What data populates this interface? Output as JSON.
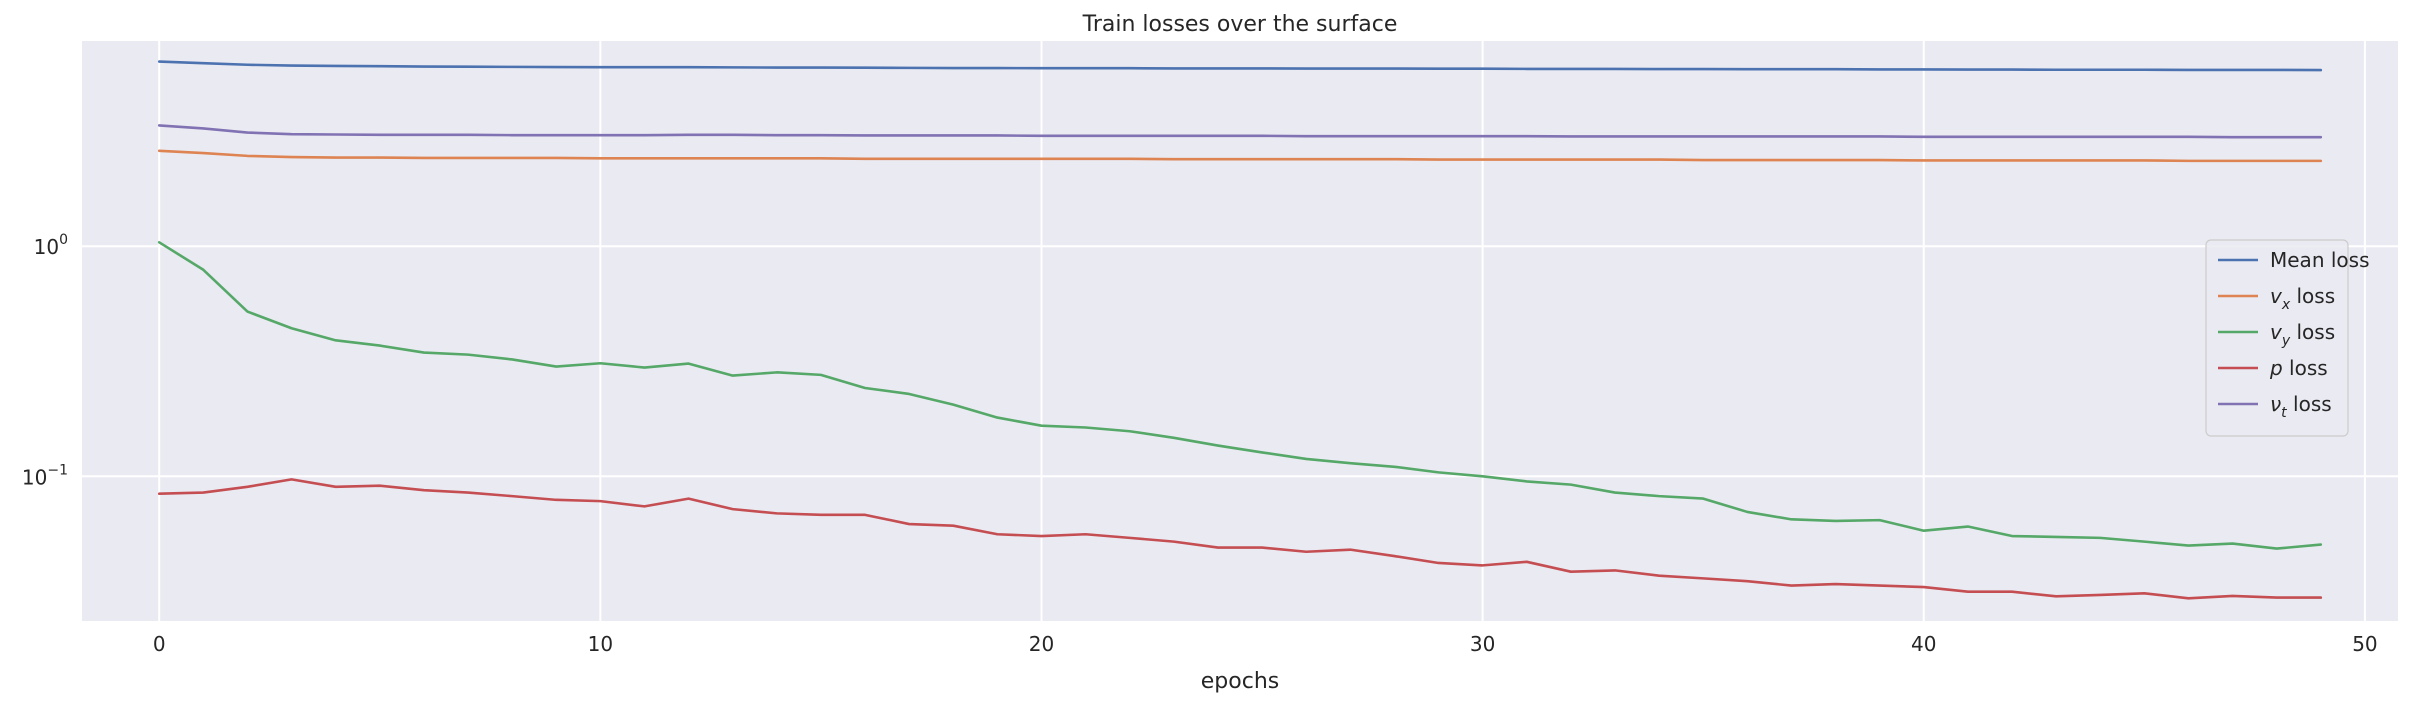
{
  "chart_data": {
    "type": "line",
    "title": "Train losses over the surface",
    "xlabel": "epochs",
    "ylabel": "",
    "yscale": "log",
    "xlim": [
      -1.75,
      50.75
    ],
    "ylim": [
      0.0235,
      7.8
    ],
    "grid": true,
    "legend_position": "center-right",
    "x_ticks": [
      0,
      10,
      20,
      30,
      40,
      50
    ],
    "y_ticks": [
      {
        "value": 1,
        "base": "10",
        "exp": "0"
      },
      {
        "value": 0.1,
        "base": "10",
        "exp": "−1"
      }
    ],
    "x": [
      0,
      1,
      2,
      3,
      4,
      5,
      6,
      7,
      8,
      9,
      10,
      11,
      12,
      13,
      14,
      15,
      16,
      17,
      18,
      19,
      20,
      21,
      22,
      23,
      24,
      25,
      26,
      27,
      28,
      29,
      30,
      31,
      32,
      33,
      34,
      35,
      36,
      37,
      38,
      39,
      40,
      41,
      42,
      43,
      44,
      45,
      46,
      47,
      48,
      49
    ],
    "series": [
      {
        "name": "Mean loss",
        "name_main": "Mean loss",
        "color": "#4c72b0",
        "values": [
          6.35,
          6.25,
          6.15,
          6.1,
          6.08,
          6.06,
          6.04,
          6.03,
          6.02,
          6.01,
          6.0,
          6.0,
          6.0,
          5.99,
          5.98,
          5.98,
          5.97,
          5.96,
          5.95,
          5.95,
          5.94,
          5.94,
          5.94,
          5.93,
          5.93,
          5.93,
          5.92,
          5.92,
          5.92,
          5.91,
          5.91,
          5.9,
          5.9,
          5.9,
          5.89,
          5.89,
          5.88,
          5.88,
          5.88,
          5.87,
          5.87,
          5.86,
          5.86,
          5.85,
          5.85,
          5.85,
          5.84,
          5.84,
          5.84,
          5.83
        ]
      },
      {
        "name": "v_x loss",
        "name_main": "v",
        "name_sub": "x",
        "name_suffix": " loss",
        "color": "#dd8452",
        "values": [
          2.6,
          2.54,
          2.47,
          2.44,
          2.43,
          2.43,
          2.42,
          2.42,
          2.42,
          2.42,
          2.41,
          2.41,
          2.41,
          2.41,
          2.41,
          2.41,
          2.4,
          2.4,
          2.4,
          2.4,
          2.4,
          2.4,
          2.4,
          2.39,
          2.39,
          2.39,
          2.39,
          2.39,
          2.39,
          2.38,
          2.38,
          2.38,
          2.38,
          2.38,
          2.38,
          2.37,
          2.37,
          2.37,
          2.37,
          2.37,
          2.36,
          2.36,
          2.36,
          2.36,
          2.36,
          2.36,
          2.35,
          2.35,
          2.35,
          2.35
        ]
      },
      {
        "name": "v_y loss",
        "name_main": "v",
        "name_sub": "y",
        "name_suffix": " loss",
        "color": "#55a868",
        "values": [
          1.04,
          0.79,
          0.52,
          0.44,
          0.39,
          0.37,
          0.345,
          0.338,
          0.322,
          0.3,
          0.31,
          0.297,
          0.309,
          0.274,
          0.283,
          0.276,
          0.242,
          0.228,
          0.205,
          0.18,
          0.166,
          0.163,
          0.157,
          0.147,
          0.136,
          0.127,
          0.119,
          0.114,
          0.11,
          0.104,
          0.1,
          0.095,
          0.092,
          0.085,
          0.082,
          0.08,
          0.07,
          0.065,
          0.064,
          0.0645,
          0.058,
          0.0605,
          0.055,
          0.0545,
          0.054,
          0.052,
          0.05,
          0.051,
          0.0485,
          0.0505
        ]
      },
      {
        "name": "p loss",
        "name_main": "p",
        "name_suffix": " loss",
        "color": "#c44e52",
        "values": [
          0.084,
          0.085,
          0.09,
          0.097,
          0.09,
          0.091,
          0.087,
          0.085,
          0.082,
          0.079,
          0.078,
          0.074,
          0.08,
          0.072,
          0.069,
          0.068,
          0.068,
          0.062,
          0.061,
          0.056,
          0.055,
          0.056,
          0.054,
          0.052,
          0.049,
          0.049,
          0.047,
          0.048,
          0.045,
          0.042,
          0.041,
          0.0425,
          0.0385,
          0.039,
          0.037,
          0.036,
          0.035,
          0.0335,
          0.034,
          0.0335,
          0.033,
          0.0315,
          0.0315,
          0.0301,
          0.0305,
          0.031,
          0.0295,
          0.0302,
          0.0297,
          0.0297
        ]
      },
      {
        "name": "ν_t loss",
        "name_main": "ν",
        "name_sub": "t",
        "name_suffix": " loss",
        "color": "#8172b3",
        "values": [
          3.35,
          3.25,
          3.12,
          3.07,
          3.06,
          3.05,
          3.05,
          3.05,
          3.04,
          3.04,
          3.04,
          3.04,
          3.05,
          3.05,
          3.04,
          3.04,
          3.03,
          3.03,
          3.03,
          3.03,
          3.02,
          3.02,
          3.02,
          3.02,
          3.02,
          3.02,
          3.01,
          3.01,
          3.01,
          3.01,
          3.01,
          3.01,
          3.0,
          3.0,
          3.0,
          3.0,
          3.0,
          3.0,
          3.0,
          3.0,
          2.99,
          2.99,
          2.99,
          2.99,
          2.99,
          2.99,
          2.99,
          2.98,
          2.98,
          2.98
        ]
      }
    ]
  }
}
